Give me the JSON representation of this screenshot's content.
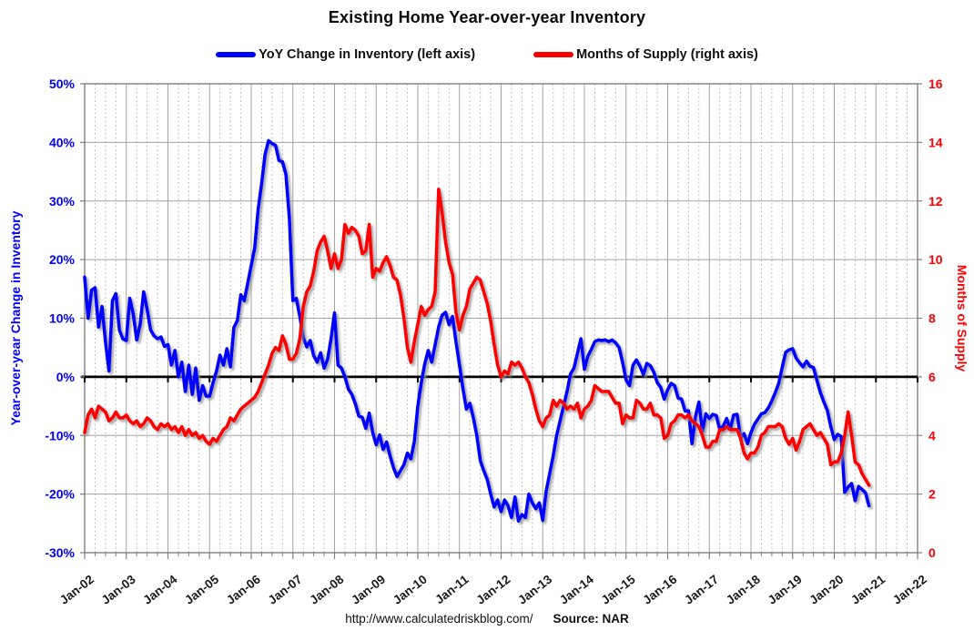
{
  "title": "Existing Home Year-over-year Inventory",
  "legend": [
    {
      "label": "YoY Change in Inventory (left axis)",
      "color": "#0000ff"
    },
    {
      "label": "Months of Supply (right axis)",
      "color": "#ff0000"
    }
  ],
  "footer": {
    "url": "http://www.calculatedriskblog.com/",
    "source": "Source: NAR"
  },
  "colors": {
    "yoy_line": "#0000ff",
    "supply_line": "#ff0000",
    "grid_major": "#a3a3a3",
    "grid_minor": "#bfbfbf",
    "plot_border": "#7f7f7f",
    "zero_line": "#000000",
    "x_tick_label": "#1a1a1a"
  },
  "chart_data": {
    "type": "line",
    "title": "Existing Home Year-over-year Inventory",
    "frequency": "monthly",
    "start": "2002-01",
    "end": "2020-11",
    "x_start_year": 2002,
    "x_end_year": 2022,
    "x_tick_labels": [
      "Jan-02",
      "Jan-03",
      "Jan-04",
      "Jan-05",
      "Jan-06",
      "Jan-07",
      "Jan-08",
      "Jan-09",
      "Jan-10",
      "Jan-11",
      "Jan-12",
      "Jan-13",
      "Jan-14",
      "Jan-15",
      "Jan-16",
      "Jan-17",
      "Jan-18",
      "Jan-19",
      "Jan-20",
      "Jan-21",
      "Jan-22"
    ],
    "grid": true,
    "legend_position": "top-center",
    "left_axis": {
      "label": "Year-over-year Change in Inventory",
      "color": "#0000ff",
      "min": -30,
      "max": 50,
      "tick_values": [
        50,
        40,
        30,
        20,
        10,
        0,
        -10,
        -20,
        -30
      ],
      "tick_labels": [
        "50%",
        "40%",
        "30%",
        "20%",
        "10%",
        "0%",
        "-10%",
        "-20%",
        "-30%"
      ]
    },
    "right_axis": {
      "label": "Months of Supply",
      "color": "#ff0000",
      "min": 0,
      "max": 16,
      "tick_values": [
        16,
        14,
        12,
        10,
        8,
        6,
        4,
        2,
        0
      ],
      "tick_labels": [
        "16",
        "14",
        "12",
        "10",
        "8",
        "6",
        "4",
        "2",
        "0"
      ]
    },
    "zero_reference": {
      "left_value": 0,
      "right_value": 6
    },
    "series": [
      {
        "name": "YoY Change in Inventory (left axis)",
        "axis": "left",
        "unit": "%",
        "color": "#0000ff",
        "values": [
          17.0,
          10.0,
          14.8,
          15.2,
          8.5,
          12.0,
          6.0,
          1.0,
          13.0,
          14.2,
          8.0,
          6.5,
          6.2,
          13.4,
          10.7,
          6.3,
          9.0,
          14.5,
          11.5,
          8.0,
          7.0,
          6.5,
          6.8,
          5.2,
          5.5,
          2.0,
          4.5,
          0.0,
          2.5,
          -2.5,
          2.0,
          -3.0,
          1.5,
          -4.0,
          -1.5,
          -3.3,
          -3.3,
          -1.0,
          1.0,
          3.7,
          2.0,
          4.8,
          1.7,
          8.4,
          9.6,
          14.0,
          13.0,
          16.0,
          19.0,
          22.0,
          28.6,
          33.0,
          38.0,
          40.3,
          39.8,
          39.5,
          36.9,
          36.7,
          34.5,
          27.0,
          13.0,
          13.4,
          10.3,
          6.7,
          5.1,
          6.2,
          3.6,
          2.5,
          4.1,
          1.5,
          3.0,
          6.5,
          10.9,
          2.0,
          1.5,
          0.0,
          -2.1,
          -3.0,
          -4.6,
          -6.7,
          -6.9,
          -8.8,
          -6.2,
          -9.5,
          -11.6,
          -9.9,
          -12.4,
          -11.1,
          -13.5,
          -15.5,
          -17.0,
          -16.0,
          -15.0,
          -13.0,
          -14.0,
          -11.0,
          -5.0,
          -1.0,
          2.2,
          4.5,
          2.5,
          5.5,
          8.5,
          10.5,
          11.0,
          8.9,
          10.3,
          6.0,
          2.0,
          -2.0,
          -5.5,
          -4.5,
          -7.0,
          -10.0,
          -14.3,
          -16.0,
          -17.5,
          -20.0,
          -22.2,
          -21.0,
          -23.0,
          -21.0,
          -22.0,
          -24.0,
          -20.5,
          -24.6,
          -23.5,
          -24.0,
          -20.0,
          -21.5,
          -22.5,
          -21.5,
          -24.5,
          -19.5,
          -16.5,
          -13.5,
          -10.0,
          -7.5,
          -5.0,
          -2.5,
          0.5,
          1.5,
          4.0,
          6.5,
          1.3,
          3.5,
          4.7,
          6.0,
          6.3,
          6.2,
          6.3,
          6.0,
          6.3,
          5.8,
          5.0,
          2.5,
          -0.5,
          -1.5,
          2.0,
          2.9,
          1.8,
          0.4,
          2.3,
          1.9,
          0.8,
          -1.0,
          -1.8,
          -3.8,
          -2.2,
          -1.1,
          -1.5,
          -3.6,
          -3.8,
          -5.8,
          -5.8,
          -11.4,
          -6.8,
          -4.3,
          -9.3,
          -6.3,
          -7.1,
          -6.4,
          -6.6,
          -9.0,
          -8.4,
          -7.1,
          -9.0,
          -6.5,
          -6.4,
          -10.4,
          -9.7,
          -11.4,
          -9.5,
          -8.1,
          -7.2,
          -6.3,
          -6.1,
          -5.3,
          -4.1,
          -2.7,
          -1.1,
          1.6,
          4.2,
          4.6,
          4.8,
          3.2,
          2.4,
          1.7,
          2.7,
          1.8,
          1.6,
          -0.6,
          -2.7,
          -4.3,
          -5.7,
          -8.5,
          -10.7,
          -9.8,
          -10.2,
          -19.7,
          -18.8,
          -18.2,
          -21.1,
          -18.7,
          -19.2,
          -19.8,
          -22.0
        ]
      },
      {
        "name": "Months of Supply (right axis)",
        "axis": "right",
        "unit": "months",
        "color": "#ff0000",
        "values": [
          4.1,
          4.7,
          4.9,
          4.6,
          5.0,
          4.9,
          4.8,
          4.5,
          4.6,
          4.8,
          4.6,
          4.6,
          4.7,
          4.5,
          4.4,
          4.5,
          4.3,
          4.4,
          4.6,
          4.5,
          4.3,
          4.2,
          4.4,
          4.3,
          4.4,
          4.2,
          4.3,
          4.1,
          4.3,
          4.0,
          4.2,
          4.0,
          4.1,
          3.9,
          4.0,
          3.8,
          3.7,
          3.9,
          3.8,
          4.0,
          4.2,
          4.3,
          4.6,
          4.5,
          4.7,
          4.9,
          5.0,
          5.1,
          5.2,
          5.3,
          5.5,
          5.8,
          6.1,
          6.4,
          6.8,
          7.0,
          6.9,
          7.4,
          7.1,
          6.6,
          6.6,
          6.8,
          7.3,
          8.4,
          8.9,
          9.1,
          9.6,
          10.3,
          10.6,
          10.8,
          10.3,
          9.7,
          10.2,
          9.7,
          10.0,
          11.2,
          10.9,
          11.1,
          11.0,
          10.8,
          10.2,
          10.3,
          11.2,
          9.4,
          9.7,
          9.6,
          9.9,
          10.1,
          9.8,
          9.4,
          9.3,
          8.8,
          8.0,
          7.0,
          6.5,
          7.2,
          7.8,
          8.4,
          8.1,
          8.3,
          8.4,
          8.9,
          12.4,
          11.6,
          10.6,
          9.9,
          9.5,
          8.2,
          7.6,
          8.1,
          8.4,
          9.0,
          9.2,
          9.4,
          9.3,
          8.9,
          8.5,
          7.9,
          7.1,
          6.4,
          6.0,
          6.2,
          6.1,
          6.5,
          6.4,
          6.5,
          6.3,
          6.0,
          5.8,
          5.4,
          4.9,
          4.5,
          4.3,
          4.6,
          4.7,
          5.2,
          5.0,
          5.2,
          5.1,
          4.9,
          5.0,
          4.9,
          5.1,
          4.6,
          4.9,
          5.0,
          5.2,
          5.7,
          5.6,
          5.5,
          5.5,
          5.5,
          5.3,
          5.1,
          5.1,
          4.4,
          4.7,
          4.6,
          4.6,
          5.2,
          5.1,
          4.9,
          4.9,
          5.1,
          4.7,
          4.7,
          4.6,
          3.9,
          4.0,
          4.4,
          4.5,
          4.7,
          4.7,
          4.6,
          4.7,
          4.5,
          4.4,
          4.3,
          4.0,
          3.6,
          3.6,
          3.8,
          3.8,
          4.2,
          4.2,
          4.3,
          4.2,
          4.2,
          4.2,
          3.9,
          3.4,
          3.2,
          3.4,
          3.4,
          3.6,
          4.0,
          4.1,
          4.3,
          4.3,
          4.3,
          4.4,
          4.3,
          3.9,
          3.7,
          3.9,
          3.5,
          3.8,
          4.2,
          4.3,
          4.4,
          4.2,
          4.0,
          4.1,
          3.9,
          3.7,
          3.0,
          3.1,
          3.1,
          3.4,
          4.0,
          4.8,
          4.0,
          3.1,
          3.0,
          2.7,
          2.5,
          2.3
        ]
      }
    ]
  }
}
